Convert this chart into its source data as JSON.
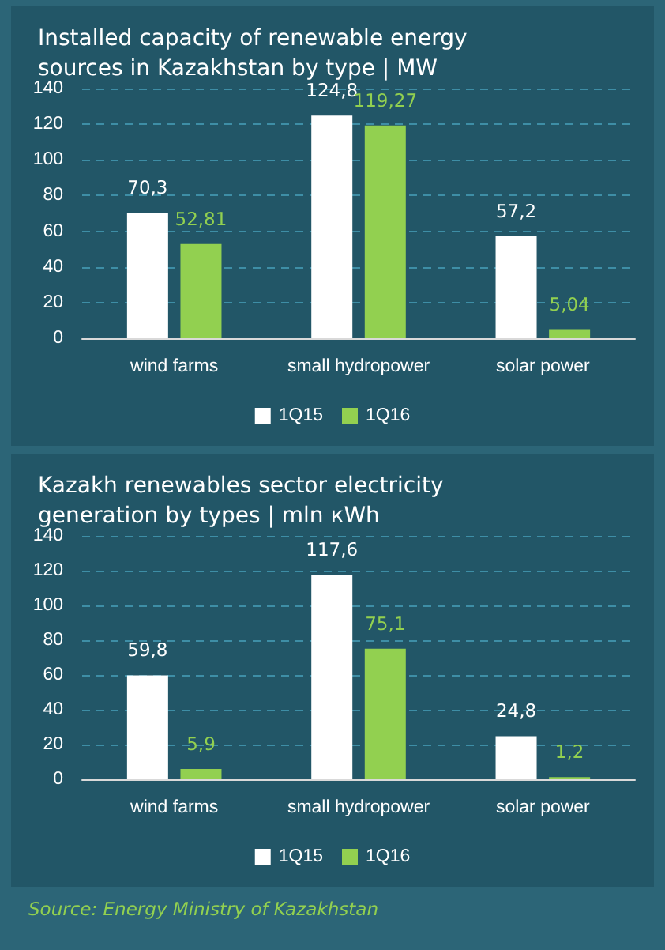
{
  "chart_data": [
    {
      "type": "bar",
      "title": "Installed capacity of renewable energy sources in Kazakhstan by type | MW",
      "categories": [
        "wind farms",
        "small hydropower",
        "solar power"
      ],
      "series": [
        {
          "name": "1Q15",
          "color": "#ffffff",
          "values": [
            70.3,
            124.8,
            57.2
          ],
          "value_labels": [
            "70,3",
            "124,8",
            "57,2"
          ]
        },
        {
          "name": "1Q16",
          "color": "#92d050",
          "values": [
            52.81,
            119.27,
            5.04
          ],
          "value_labels": [
            "52,81",
            "119,27",
            "5,04"
          ]
        }
      ],
      "ylim": [
        0,
        140
      ],
      "yticks": [
        0,
        20,
        40,
        60,
        80,
        100,
        120,
        140
      ],
      "grid": "y",
      "legend": "bottom"
    },
    {
      "type": "bar",
      "title": "Kazakh renewables sector electricity generation by types | mln кWh",
      "categories": [
        "wind farms",
        "small hydropower",
        "solar power"
      ],
      "series": [
        {
          "name": "1Q15",
          "color": "#ffffff",
          "values": [
            59.8,
            117.6,
            24.8
          ],
          "value_labels": [
            "59,8",
            "117,6",
            "24,8"
          ]
        },
        {
          "name": "1Q16",
          "color": "#92d050",
          "values": [
            5.9,
            75.1,
            1.2
          ],
          "value_labels": [
            "5,9",
            "75,1",
            "1,2"
          ]
        }
      ],
      "ylim": [
        0,
        140
      ],
      "yticks": [
        0,
        20,
        40,
        60,
        80,
        100,
        120,
        140
      ],
      "grid": "y",
      "legend": "bottom",
      "annotations": [
        "Source:  Energy Ministry of Kazakhstan"
      ]
    }
  ]
}
